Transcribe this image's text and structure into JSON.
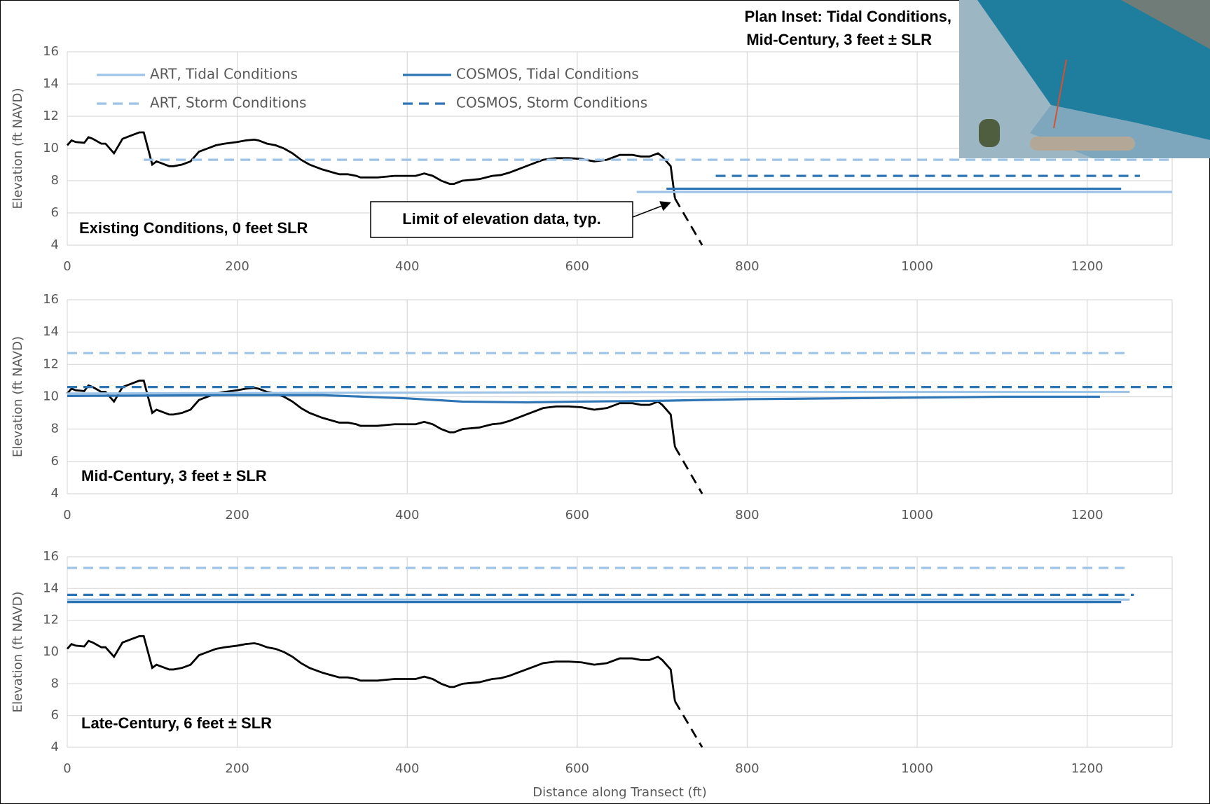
{
  "inset": {
    "title": [
      "Plan Inset: Tidal Conditions,",
      "Mid-Century, 3 feet ± SLR"
    ]
  },
  "chart_data": [
    {
      "type": "line",
      "title": "Existing Conditions, 0 feet SLR",
      "y_label": "Elevation (ft NAVD)",
      "annotation": "Limit of elevation data, typ.",
      "xlim": [
        0,
        1300
      ],
      "xticks": [
        0,
        200,
        400,
        600,
        800,
        1000,
        1200
      ],
      "ylim": [
        4,
        16
      ],
      "yticks": [
        4,
        6,
        8,
        10,
        12,
        14,
        16
      ],
      "grid": true,
      "series": [
        {
          "color": "#000000",
          "dash": false,
          "x": [
            0,
            5,
            10,
            20,
            25,
            30,
            40,
            45,
            55,
            65,
            75,
            85,
            90,
            95,
            100,
            105,
            110,
            120,
            125,
            135,
            145,
            155,
            165,
            175,
            185,
            200,
            210,
            220,
            225,
            235,
            245,
            255,
            265,
            275,
            285,
            300,
            310,
            320,
            330,
            340,
            345,
            355,
            365,
            375,
            385,
            400,
            410,
            420,
            430,
            440,
            450,
            455,
            465,
            475,
            485,
            500,
            510,
            520,
            530,
            545,
            560,
            575,
            590,
            605,
            620,
            635,
            650,
            665,
            675,
            685,
            695,
            700,
            705,
            710,
            715
          ],
          "values": [
            10.2,
            10.5,
            10.4,
            10.35,
            10.7,
            10.6,
            10.3,
            10.3,
            9.7,
            10.6,
            10.8,
            11.0,
            11.0,
            10.0,
            9.0,
            9.2,
            9.1,
            8.9,
            8.9,
            9.0,
            9.2,
            9.8,
            10.0,
            10.2,
            10.3,
            10.4,
            10.5,
            10.55,
            10.5,
            10.3,
            10.2,
            10.0,
            9.7,
            9.3,
            9.0,
            8.7,
            8.55,
            8.4,
            8.4,
            8.3,
            8.2,
            8.2,
            8.2,
            8.25,
            8.3,
            8.3,
            8.3,
            8.45,
            8.3,
            8.0,
            7.8,
            7.8,
            8.0,
            8.05,
            8.1,
            8.3,
            8.35,
            8.5,
            8.7,
            9.0,
            9.3,
            9.4,
            9.4,
            9.35,
            9.2,
            9.3,
            9.6,
            9.6,
            9.5,
            9.5,
            9.7,
            9.5,
            9.2,
            8.9,
            6.9
          ]
        },
        {
          "color": "#000000",
          "dash": true,
          "x": [
            715,
            747
          ],
          "values": [
            6.9,
            4.0
          ]
        },
        {
          "name": "ART, Tidal Conditions",
          "color": "#9dc3e6",
          "dash": false,
          "x": [
            670,
            1300
          ],
          "values": [
            7.3,
            7.3
          ]
        },
        {
          "name": "ART, Storm Conditions",
          "color": "#9dc3e6",
          "dash": true,
          "x": [
            90,
            1300
          ],
          "values": [
            9.3,
            9.3
          ]
        },
        {
          "name": "COSMOS, Tidal Conditions",
          "color": "#2e75b6",
          "dash": false,
          "x": [
            705,
            1240
          ],
          "values": [
            7.5,
            7.5
          ]
        },
        {
          "name": "COSMOS, Storm Conditions",
          "color": "#2e75b6",
          "dash": true,
          "x": [
            763,
            1262
          ],
          "values": [
            8.3,
            8.3
          ]
        }
      ]
    },
    {
      "type": "line",
      "title": "Mid-Century, 3 feet ± SLR",
      "y_label": "Elevation (ft NAVD)",
      "xlim": [
        0,
        1300
      ],
      "xticks": [
        0,
        200,
        400,
        600,
        800,
        1000,
        1200
      ],
      "ylim": [
        4,
        16
      ],
      "yticks": [
        4,
        6,
        8,
        10,
        12,
        14,
        16
      ],
      "grid": true,
      "series": [
        {
          "color": "#000000",
          "dash": false,
          "x": [
            0,
            5,
            10,
            20,
            25,
            30,
            40,
            45,
            55,
            65,
            75,
            85,
            90,
            95,
            100,
            105,
            110,
            120,
            125,
            135,
            145,
            155,
            165,
            175,
            185,
            200,
            210,
            220,
            225,
            235,
            245,
            255,
            265,
            275,
            285,
            300,
            310,
            320,
            330,
            340,
            345,
            355,
            365,
            375,
            385,
            400,
            410,
            420,
            430,
            440,
            450,
            455,
            465,
            475,
            485,
            500,
            510,
            520,
            530,
            545,
            560,
            575,
            590,
            605,
            620,
            635,
            650,
            665,
            675,
            685,
            695,
            700,
            705,
            710,
            715
          ],
          "values": [
            10.2,
            10.5,
            10.4,
            10.35,
            10.7,
            10.6,
            10.3,
            10.3,
            9.7,
            10.6,
            10.8,
            11.0,
            11.0,
            10.0,
            9.0,
            9.2,
            9.1,
            8.9,
            8.9,
            9.0,
            9.2,
            9.8,
            10.0,
            10.2,
            10.3,
            10.4,
            10.5,
            10.55,
            10.5,
            10.3,
            10.2,
            10.0,
            9.7,
            9.3,
            9.0,
            8.7,
            8.55,
            8.4,
            8.4,
            8.3,
            8.2,
            8.2,
            8.2,
            8.25,
            8.3,
            8.3,
            8.3,
            8.45,
            8.3,
            8.0,
            7.8,
            7.8,
            8.0,
            8.05,
            8.1,
            8.3,
            8.35,
            8.5,
            8.7,
            9.0,
            9.3,
            9.4,
            9.4,
            9.35,
            9.2,
            9.3,
            9.6,
            9.6,
            9.5,
            9.5,
            9.7,
            9.5,
            9.2,
            8.9,
            6.9
          ]
        },
        {
          "color": "#000000",
          "dash": true,
          "x": [
            715,
            747
          ],
          "values": [
            6.9,
            4.0
          ]
        },
        {
          "color": "#9dc3e6",
          "dash": false,
          "x": [
            0,
            400,
            800,
            1250
          ],
          "values": [
            10.2,
            10.25,
            10.3,
            10.3
          ]
        },
        {
          "color": "#9dc3e6",
          "dash": true,
          "x": [
            0,
            1245
          ],
          "values": [
            12.7,
            12.7
          ]
        },
        {
          "color": "#2e75b6",
          "dash": false,
          "x": [
            0,
            200,
            300,
            400,
            465,
            540,
            600,
            700,
            800,
            1000,
            1100,
            1215
          ],
          "values": [
            10.05,
            10.1,
            10.1,
            9.9,
            9.7,
            9.65,
            9.7,
            9.75,
            9.85,
            9.95,
            10.0,
            10.0
          ]
        },
        {
          "color": "#2e75b6",
          "dash": true,
          "x": [
            0,
            1300
          ],
          "values": [
            10.6,
            10.6
          ]
        }
      ]
    },
    {
      "type": "line",
      "title": "Late-Century, 6 feet ± SLR",
      "y_label": "Elevation (ft NAVD)",
      "x_label": "Distance along Transect (ft)",
      "xlim": [
        0,
        1300
      ],
      "xticks": [
        0,
        200,
        400,
        600,
        800,
        1000,
        1200
      ],
      "ylim": [
        4,
        16
      ],
      "yticks": [
        4,
        6,
        8,
        10,
        12,
        14,
        16
      ],
      "grid": true,
      "series": [
        {
          "color": "#000000",
          "dash": false,
          "x": [
            0,
            5,
            10,
            20,
            25,
            30,
            40,
            45,
            55,
            65,
            75,
            85,
            90,
            95,
            100,
            105,
            110,
            120,
            125,
            135,
            145,
            155,
            165,
            175,
            185,
            200,
            210,
            220,
            225,
            235,
            245,
            255,
            265,
            275,
            285,
            300,
            310,
            320,
            330,
            340,
            345,
            355,
            365,
            375,
            385,
            400,
            410,
            420,
            430,
            440,
            450,
            455,
            465,
            475,
            485,
            500,
            510,
            520,
            530,
            545,
            560,
            575,
            590,
            605,
            620,
            635,
            650,
            665,
            675,
            685,
            695,
            700,
            705,
            710,
            715
          ],
          "values": [
            10.2,
            10.5,
            10.4,
            10.35,
            10.7,
            10.6,
            10.3,
            10.3,
            9.7,
            10.6,
            10.8,
            11.0,
            11.0,
            10.0,
            9.0,
            9.2,
            9.1,
            8.9,
            8.9,
            9.0,
            9.2,
            9.8,
            10.0,
            10.2,
            10.3,
            10.4,
            10.5,
            10.55,
            10.5,
            10.3,
            10.2,
            10.0,
            9.7,
            9.3,
            9.0,
            8.7,
            8.55,
            8.4,
            8.4,
            8.3,
            8.2,
            8.2,
            8.2,
            8.25,
            8.3,
            8.3,
            8.3,
            8.45,
            8.3,
            8.0,
            7.8,
            7.8,
            8.0,
            8.05,
            8.1,
            8.3,
            8.35,
            8.5,
            8.7,
            9.0,
            9.3,
            9.4,
            9.4,
            9.35,
            9.2,
            9.3,
            9.6,
            9.6,
            9.5,
            9.5,
            9.7,
            9.5,
            9.2,
            8.9,
            6.9
          ]
        },
        {
          "color": "#000000",
          "dash": true,
          "x": [
            715,
            747
          ],
          "values": [
            6.9,
            4.0
          ]
        },
        {
          "color": "#9dc3e6",
          "dash": false,
          "x": [
            0,
            1250
          ],
          "values": [
            13.3,
            13.3
          ]
        },
        {
          "color": "#9dc3e6",
          "dash": true,
          "x": [
            0,
            1250
          ],
          "values": [
            15.3,
            15.3
          ]
        },
        {
          "color": "#2e75b6",
          "dash": false,
          "x": [
            0,
            1240
          ],
          "values": [
            13.15,
            13.15
          ]
        },
        {
          "color": "#2e75b6",
          "dash": true,
          "x": [
            0,
            1255
          ],
          "values": [
            13.6,
            13.6
          ]
        }
      ]
    }
  ]
}
